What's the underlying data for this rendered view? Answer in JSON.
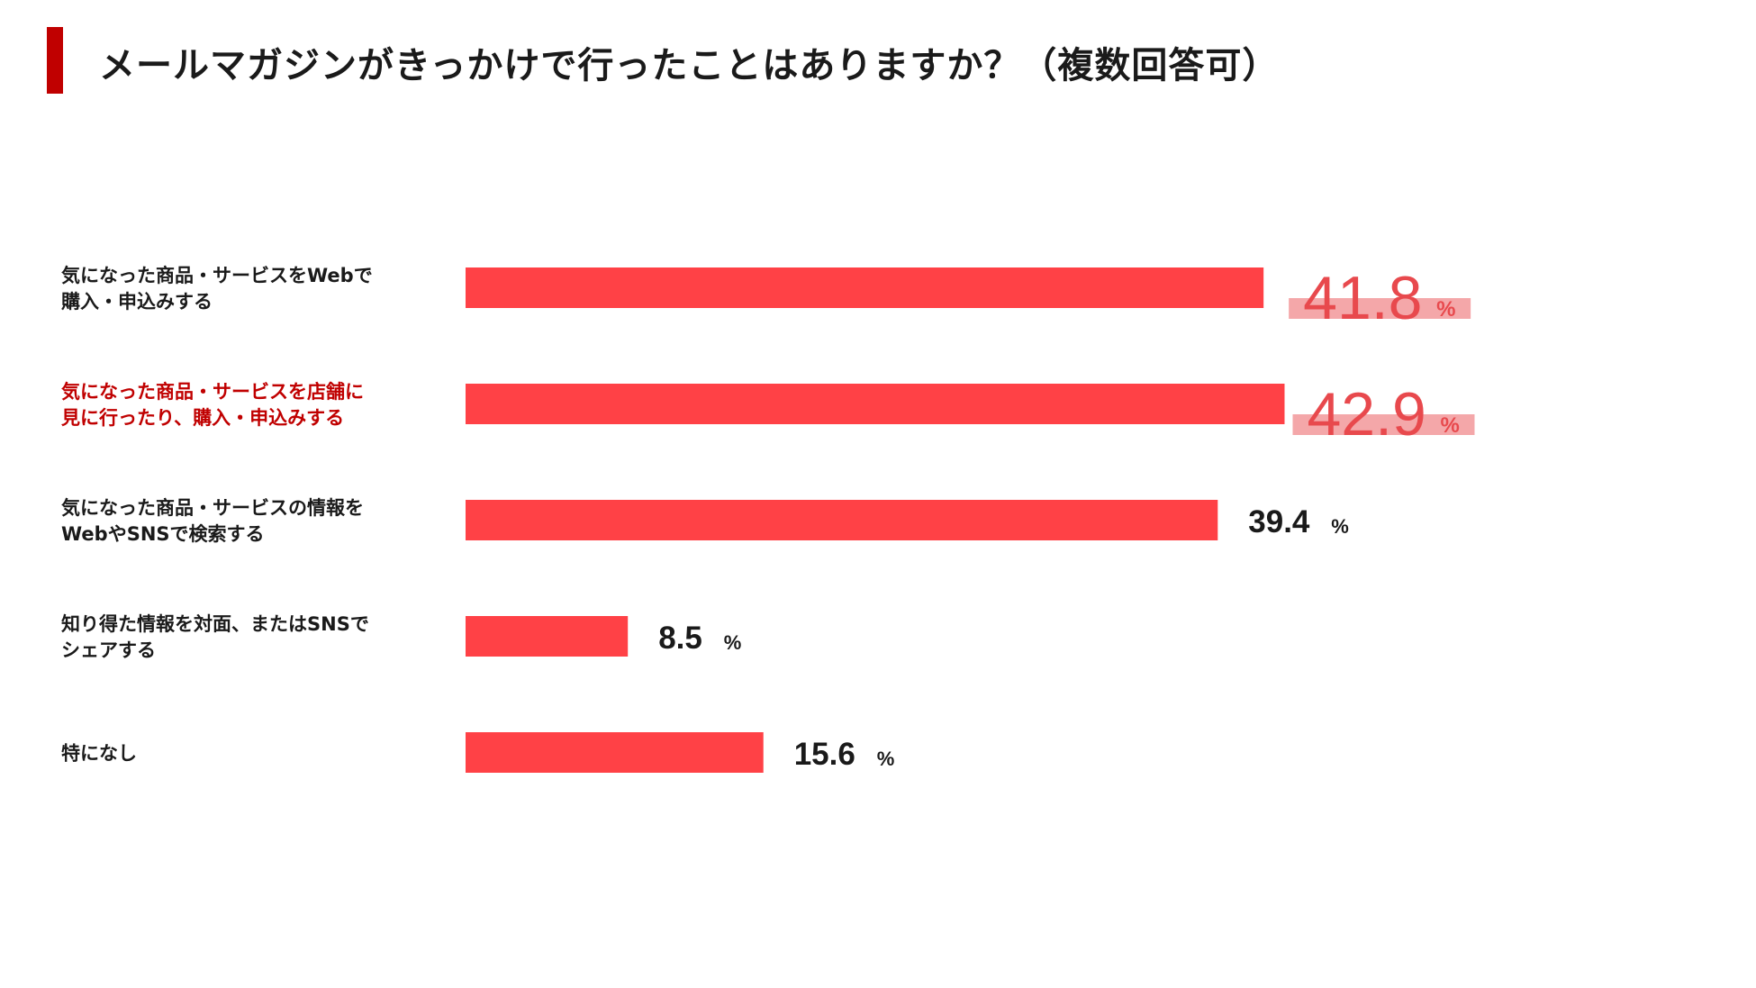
{
  "title": "メールマガジンがきっかけで行ったことはありますか？（複数回答可）",
  "colors": {
    "bar": "#ff4146",
    "highlight_text": "#c00000",
    "big_value": "#e8494d",
    "highlight_band": "#f4a7a9",
    "accent": "#c00000",
    "text": "#1a1a1a"
  },
  "chart_data": {
    "type": "bar",
    "orientation": "horizontal",
    "unit": "%",
    "xlim": [
      0,
      50
    ],
    "grid": false,
    "categories": [
      [
        "気になった商品・サービスをWebで",
        "購入・申込みする"
      ],
      [
        "気になった商品・サービスを店舗に",
        "見に行ったり、購入・申込みする"
      ],
      [
        "気になった商品・サービスの情報を",
        "WebやSNSで検索する"
      ],
      [
        "知り得た情報を対面、またはSNSで",
        "シェアする"
      ],
      [
        "特になし"
      ]
    ],
    "values": [
      41.8,
      42.9,
      39.4,
      8.5,
      15.6
    ],
    "value_labels": [
      "41.8",
      "42.9",
      "39.4",
      "8.5",
      "15.6"
    ],
    "emphasized": [
      true,
      true,
      false,
      false,
      false
    ],
    "highlighted_category": 1
  }
}
